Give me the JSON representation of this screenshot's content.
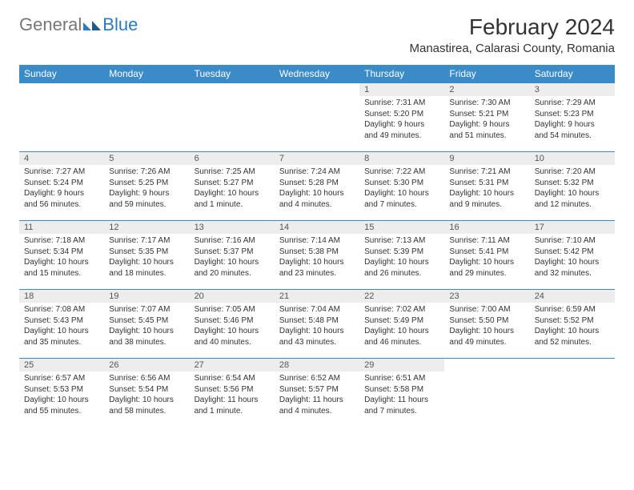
{
  "brand": {
    "general": "General",
    "blue": "Blue"
  },
  "title": "February 2024",
  "location": "Manastirea, Calarasi County, Romania",
  "colors": {
    "accent": "#3b8bc9",
    "dayNumBg": "#ededed",
    "border": "#3b8bc9"
  },
  "weekdays": [
    "Sunday",
    "Monday",
    "Tuesday",
    "Wednesday",
    "Thursday",
    "Friday",
    "Saturday"
  ],
  "weeks": [
    [
      null,
      null,
      null,
      null,
      {
        "n": "1",
        "sunrise": "Sunrise: 7:31 AM",
        "sunset": "Sunset: 5:20 PM",
        "daylight": "Daylight: 9 hours and 49 minutes."
      },
      {
        "n": "2",
        "sunrise": "Sunrise: 7:30 AM",
        "sunset": "Sunset: 5:21 PM",
        "daylight": "Daylight: 9 hours and 51 minutes."
      },
      {
        "n": "3",
        "sunrise": "Sunrise: 7:29 AM",
        "sunset": "Sunset: 5:23 PM",
        "daylight": "Daylight: 9 hours and 54 minutes."
      }
    ],
    [
      {
        "n": "4",
        "sunrise": "Sunrise: 7:27 AM",
        "sunset": "Sunset: 5:24 PM",
        "daylight": "Daylight: 9 hours and 56 minutes."
      },
      {
        "n": "5",
        "sunrise": "Sunrise: 7:26 AM",
        "sunset": "Sunset: 5:25 PM",
        "daylight": "Daylight: 9 hours and 59 minutes."
      },
      {
        "n": "6",
        "sunrise": "Sunrise: 7:25 AM",
        "sunset": "Sunset: 5:27 PM",
        "daylight": "Daylight: 10 hours and 1 minute."
      },
      {
        "n": "7",
        "sunrise": "Sunrise: 7:24 AM",
        "sunset": "Sunset: 5:28 PM",
        "daylight": "Daylight: 10 hours and 4 minutes."
      },
      {
        "n": "8",
        "sunrise": "Sunrise: 7:22 AM",
        "sunset": "Sunset: 5:30 PM",
        "daylight": "Daylight: 10 hours and 7 minutes."
      },
      {
        "n": "9",
        "sunrise": "Sunrise: 7:21 AM",
        "sunset": "Sunset: 5:31 PM",
        "daylight": "Daylight: 10 hours and 9 minutes."
      },
      {
        "n": "10",
        "sunrise": "Sunrise: 7:20 AM",
        "sunset": "Sunset: 5:32 PM",
        "daylight": "Daylight: 10 hours and 12 minutes."
      }
    ],
    [
      {
        "n": "11",
        "sunrise": "Sunrise: 7:18 AM",
        "sunset": "Sunset: 5:34 PM",
        "daylight": "Daylight: 10 hours and 15 minutes."
      },
      {
        "n": "12",
        "sunrise": "Sunrise: 7:17 AM",
        "sunset": "Sunset: 5:35 PM",
        "daylight": "Daylight: 10 hours and 18 minutes."
      },
      {
        "n": "13",
        "sunrise": "Sunrise: 7:16 AM",
        "sunset": "Sunset: 5:37 PM",
        "daylight": "Daylight: 10 hours and 20 minutes."
      },
      {
        "n": "14",
        "sunrise": "Sunrise: 7:14 AM",
        "sunset": "Sunset: 5:38 PM",
        "daylight": "Daylight: 10 hours and 23 minutes."
      },
      {
        "n": "15",
        "sunrise": "Sunrise: 7:13 AM",
        "sunset": "Sunset: 5:39 PM",
        "daylight": "Daylight: 10 hours and 26 minutes."
      },
      {
        "n": "16",
        "sunrise": "Sunrise: 7:11 AM",
        "sunset": "Sunset: 5:41 PM",
        "daylight": "Daylight: 10 hours and 29 minutes."
      },
      {
        "n": "17",
        "sunrise": "Sunrise: 7:10 AM",
        "sunset": "Sunset: 5:42 PM",
        "daylight": "Daylight: 10 hours and 32 minutes."
      }
    ],
    [
      {
        "n": "18",
        "sunrise": "Sunrise: 7:08 AM",
        "sunset": "Sunset: 5:43 PM",
        "daylight": "Daylight: 10 hours and 35 minutes."
      },
      {
        "n": "19",
        "sunrise": "Sunrise: 7:07 AM",
        "sunset": "Sunset: 5:45 PM",
        "daylight": "Daylight: 10 hours and 38 minutes."
      },
      {
        "n": "20",
        "sunrise": "Sunrise: 7:05 AM",
        "sunset": "Sunset: 5:46 PM",
        "daylight": "Daylight: 10 hours and 40 minutes."
      },
      {
        "n": "21",
        "sunrise": "Sunrise: 7:04 AM",
        "sunset": "Sunset: 5:48 PM",
        "daylight": "Daylight: 10 hours and 43 minutes."
      },
      {
        "n": "22",
        "sunrise": "Sunrise: 7:02 AM",
        "sunset": "Sunset: 5:49 PM",
        "daylight": "Daylight: 10 hours and 46 minutes."
      },
      {
        "n": "23",
        "sunrise": "Sunrise: 7:00 AM",
        "sunset": "Sunset: 5:50 PM",
        "daylight": "Daylight: 10 hours and 49 minutes."
      },
      {
        "n": "24",
        "sunrise": "Sunrise: 6:59 AM",
        "sunset": "Sunset: 5:52 PM",
        "daylight": "Daylight: 10 hours and 52 minutes."
      }
    ],
    [
      {
        "n": "25",
        "sunrise": "Sunrise: 6:57 AM",
        "sunset": "Sunset: 5:53 PM",
        "daylight": "Daylight: 10 hours and 55 minutes."
      },
      {
        "n": "26",
        "sunrise": "Sunrise: 6:56 AM",
        "sunset": "Sunset: 5:54 PM",
        "daylight": "Daylight: 10 hours and 58 minutes."
      },
      {
        "n": "27",
        "sunrise": "Sunrise: 6:54 AM",
        "sunset": "Sunset: 5:56 PM",
        "daylight": "Daylight: 11 hours and 1 minute."
      },
      {
        "n": "28",
        "sunrise": "Sunrise: 6:52 AM",
        "sunset": "Sunset: 5:57 PM",
        "daylight": "Daylight: 11 hours and 4 minutes."
      },
      {
        "n": "29",
        "sunrise": "Sunrise: 6:51 AM",
        "sunset": "Sunset: 5:58 PM",
        "daylight": "Daylight: 11 hours and 7 minutes."
      },
      null,
      null
    ]
  ]
}
